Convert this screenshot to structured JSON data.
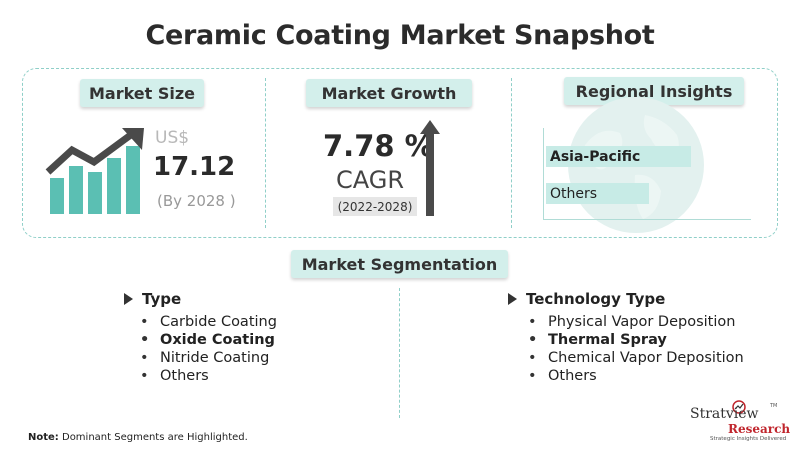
{
  "title": "Ceramic Coating Market Snapshot",
  "market_size": {
    "label": "Market Size",
    "currency": "US$",
    "value": "17.12",
    "year": "(By 2028 )"
  },
  "market_growth": {
    "label": "Market Growth",
    "value": "7.78 %",
    "metric": "CAGR",
    "period": "(2022-2028)"
  },
  "regional_insights": {
    "label": "Regional Insights",
    "regions": [
      {
        "name": "Asia-Pacific",
        "highlighted": true
      },
      {
        "name": "Others",
        "highlighted": false
      }
    ]
  },
  "segmentation": {
    "label": "Market Segmentation",
    "groups": [
      {
        "heading": "Type",
        "items": [
          {
            "text": "Carbide Coating",
            "highlighted": false
          },
          {
            "text": "Oxide Coating",
            "highlighted": true
          },
          {
            "text": "Nitride Coating",
            "highlighted": false
          },
          {
            "text": "Others",
            "highlighted": false
          }
        ]
      },
      {
        "heading": "Technology Type",
        "items": [
          {
            "text": "Physical Vapor Deposition",
            "highlighted": false
          },
          {
            "text": "Thermal Spray",
            "highlighted": true
          },
          {
            "text": "Chemical Vapor Deposition",
            "highlighted": false
          },
          {
            "text": "Others",
            "highlighted": false
          }
        ]
      }
    ]
  },
  "note": {
    "label": "Note:",
    "text": " Dominant Segments are Highlighted."
  },
  "logo": {
    "name": "Stratview",
    "tm": "TM",
    "sub": "Research",
    "tagline": "Strategic Insights Delivered"
  },
  "colors": {
    "accent_teal": "#5bbfb3",
    "pill_bg": "#d3efeb",
    "dark_gray": "#4a4a4a",
    "brand_red": "#c0262d"
  }
}
